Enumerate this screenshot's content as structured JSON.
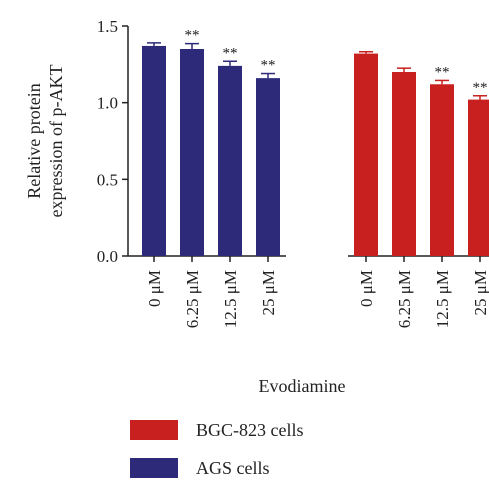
{
  "chart_data": {
    "type": "bar",
    "title": "",
    "xlabel": "Evodiamine",
    "ylabel": [
      "Relative protein",
      "expression of p-AKT"
    ],
    "ylim": [
      0,
      1.5
    ],
    "yticks": [
      "0.0",
      "0.5",
      "1.0",
      "1.5"
    ],
    "grid": false,
    "legend_position": "bottom",
    "groups": [
      {
        "name": "AGS cells",
        "color": "#2e2a7a",
        "categories": [
          "0 μM",
          "6.25 μM",
          "12.5 μM",
          "25 μM"
        ],
        "values": [
          1.37,
          1.35,
          1.24,
          1.16
        ],
        "errors": [
          0.02,
          0.035,
          0.03,
          0.03
        ],
        "significance": [
          "",
          "**",
          "**",
          "**"
        ]
      },
      {
        "name": "BGC-823 cells",
        "color": "#c8201e",
        "categories": [
          "0 μM",
          "6.25 μM",
          "12.5 μM",
          "25 μM"
        ],
        "values": [
          1.32,
          1.2,
          1.12,
          1.02
        ],
        "errors": [
          0.012,
          0.025,
          0.025,
          0.025
        ],
        "significance": [
          "",
          "",
          "**",
          "**"
        ]
      }
    ],
    "legend": [
      {
        "label": "BGC-823 cells",
        "color": "#c8201e"
      },
      {
        "label": "AGS cells",
        "color": "#2e2a7a"
      }
    ]
  }
}
